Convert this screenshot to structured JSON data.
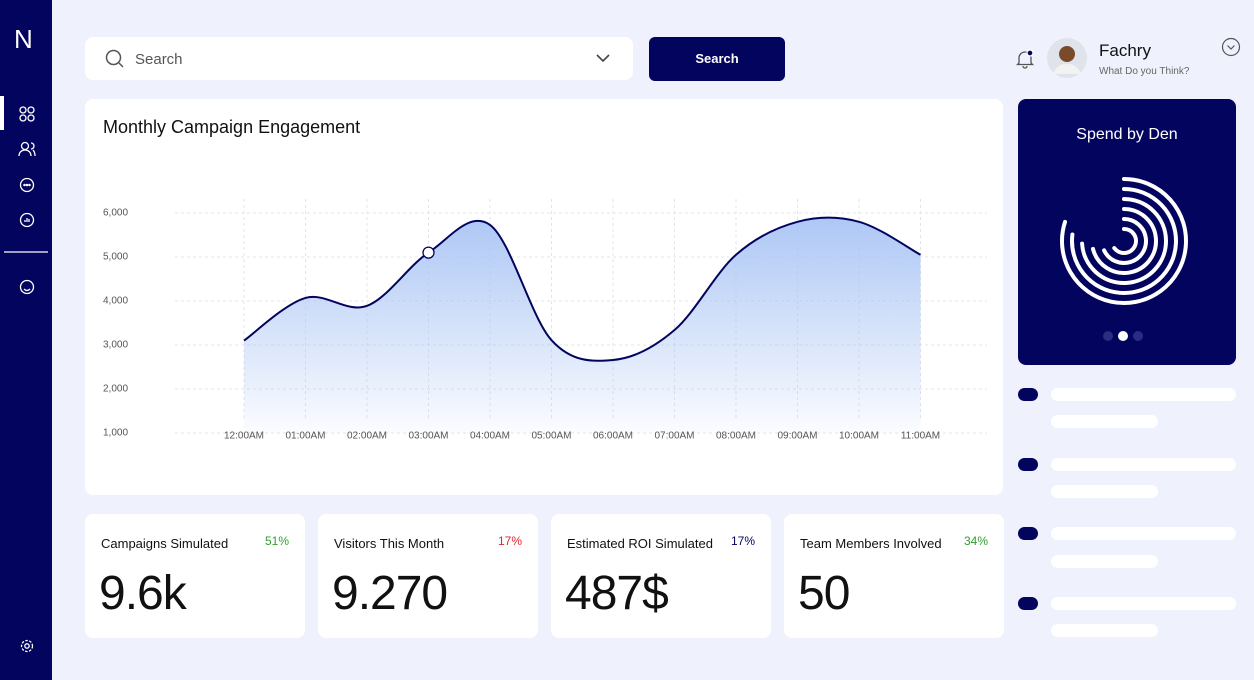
{
  "brand": "N",
  "search": {
    "placeholder": "Search",
    "button": "Search"
  },
  "user": {
    "name": "Fachry",
    "subtitle": "What Do you Think?"
  },
  "chart_data": {
    "type": "area",
    "title": "Monthly Campaign Engagement",
    "categories": [
      "12:00AM",
      "01:00AM",
      "02:00AM",
      "03:00AM",
      "04:00AM",
      "05:00AM",
      "06:00AM",
      "07:00AM",
      "08:00AM",
      "09:00AM",
      "10:00AM",
      "11:00AM"
    ],
    "values": [
      3100,
      4070,
      3890,
      5100,
      5730,
      3110,
      2660,
      3340,
      5050,
      5800,
      5800,
      5050
    ],
    "color": "#03045e",
    "fill_color": "#a9c4f5",
    "ylim": [
      1000,
      6000
    ],
    "yticks": [
      {
        "value": 1000,
        "label": "1,000"
      },
      {
        "value": 2000,
        "label": "2,000"
      },
      {
        "value": 3000,
        "label": "3,000"
      },
      {
        "value": 4000,
        "label": "4,000"
      },
      {
        "value": 5000,
        "label": "5,000"
      },
      {
        "value": 6000,
        "label": "6,000"
      }
    ],
    "grid": true,
    "highlight_index": 3
  },
  "spend_card": {
    "title": "Spend by Den"
  },
  "stats": [
    {
      "label": "Campaigns Simulated",
      "change": "51%",
      "change_color": "#2ea12e",
      "value": "9.6k"
    },
    {
      "label": "Visitors This Month",
      "change": "17%",
      "change_color": "#e0262b",
      "value": "9.270"
    },
    {
      "label": "Estimated ROI Simulated",
      "change": "17%",
      "change_color": "#03045e",
      "value": "487$"
    },
    {
      "label": "Team Members Involved",
      "change": "34%",
      "change_color": "#2ea12e",
      "value": "50"
    }
  ]
}
